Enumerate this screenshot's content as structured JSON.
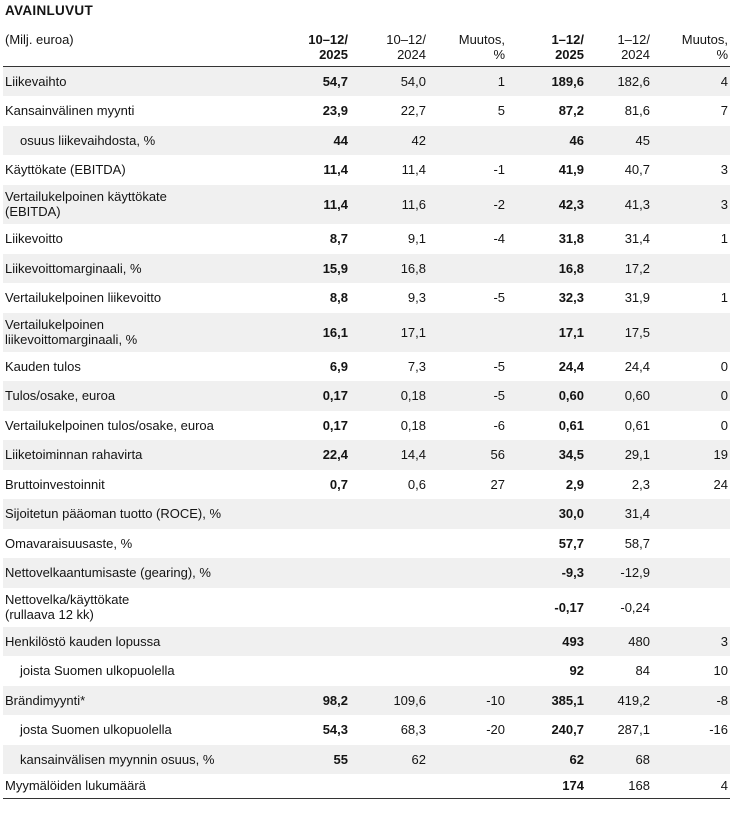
{
  "title": "AVAINLUVUT",
  "header": [
    "(Milj. euroa)",
    "10–12/\n2025",
    "10–12/\n2024",
    "Muutos,\n%",
    "1–12/\n2025",
    "1–12/\n2024",
    "Muutos,\n%"
  ],
  "rows": [
    {
      "label": "Liikevaihto",
      "v1": "54,7",
      "v2": "54,0",
      "v3": "1",
      "v4": "189,6",
      "v5": "182,6",
      "v6": "4"
    },
    {
      "label": "Kansainvälinen myynti",
      "v1": "23,9",
      "v2": "22,7",
      "v3": "5",
      "v4": "87,2",
      "v5": "81,6",
      "v6": "7"
    },
    {
      "label": "osuus liikevaihdosta, %",
      "v1": "44",
      "v2": "42",
      "v3": "",
      "v4": "46",
      "v5": "45",
      "v6": ""
    },
    {
      "label": "Käyttökate (EBITDA)",
      "v1": "11,4",
      "v2": "11,4",
      "v3": "-1",
      "v4": "41,9",
      "v5": "40,7",
      "v6": "3"
    },
    {
      "label": "Vertailukelpoinen käyttökate\n(EBITDA)",
      "v1": "11,4",
      "v2": "11,6",
      "v3": "-2",
      "v4": "42,3",
      "v5": "41,3",
      "v6": "3"
    },
    {
      "label": "Liikevoitto",
      "v1": "8,7",
      "v2": "9,1",
      "v3": "-4",
      "v4": "31,8",
      "v5": "31,4",
      "v6": "1"
    },
    {
      "label": "Liikevoittomarginaali, %",
      "v1": "15,9",
      "v2": "16,8",
      "v3": "",
      "v4": "16,8",
      "v5": "17,2",
      "v6": ""
    },
    {
      "label": "Vertailukelpoinen liikevoitto",
      "v1": "8,8",
      "v2": "9,3",
      "v3": "-5",
      "v4": "32,3",
      "v5": "31,9",
      "v6": "1"
    },
    {
      "label": "Vertailukelpoinen\nliikevoittomarginaali, %",
      "v1": "16,1",
      "v2": "17,1",
      "v3": "",
      "v4": "17,1",
      "v5": "17,5",
      "v6": ""
    },
    {
      "label": "Kauden tulos",
      "v1": "6,9",
      "v2": "7,3",
      "v3": "-5",
      "v4": "24,4",
      "v5": "24,4",
      "v6": "0"
    },
    {
      "label": "Tulos/osake, euroa",
      "v1": "0,17",
      "v2": "0,18",
      "v3": "-5",
      "v4": "0,60",
      "v5": "0,60",
      "v6": "0"
    },
    {
      "label": "Vertailukelpoinen tulos/osake, euroa",
      "v1": "0,17",
      "v2": "0,18",
      "v3": "-6",
      "v4": "0,61",
      "v5": "0,61",
      "v6": "0"
    },
    {
      "label": "Liiketoiminnan rahavirta",
      "v1": "22,4",
      "v2": "14,4",
      "v3": "56",
      "v4": "34,5",
      "v5": "29,1",
      "v6": "19"
    },
    {
      "label": "Bruttoinvestoinnit",
      "v1": "0,7",
      "v2": "0,6",
      "v3": "27",
      "v4": "2,9",
      "v5": "2,3",
      "v6": "24"
    },
    {
      "label": "Sijoitetun pääoman tuotto (ROCE), %",
      "v1": "",
      "v2": "",
      "v3": "",
      "v4": "30,0",
      "v5": "31,4",
      "v6": ""
    },
    {
      "label": "Omavaraisuusaste, %",
      "v1": "",
      "v2": "",
      "v3": "",
      "v4": "57,7",
      "v5": "58,7",
      "v6": ""
    },
    {
      "label": "Nettovelkaantumisaste (gearing), %",
      "v1": "",
      "v2": "",
      "v3": "",
      "v4": "-9,3",
      "v5": "-12,9",
      "v6": ""
    },
    {
      "label": "Nettovelka/käyttökate\n(rullaava 12 kk)",
      "v1": "",
      "v2": "",
      "v3": "",
      "v4": "-0,17",
      "v5": "-0,24",
      "v6": ""
    },
    {
      "label": "Henkilöstö kauden lopussa",
      "v1": "",
      "v2": "",
      "v3": "",
      "v4": "493",
      "v5": "480",
      "v6": "3"
    },
    {
      "label": "joista Suomen ulkopuolella",
      "v1": "",
      "v2": "",
      "v3": "",
      "v4": "92",
      "v5": "84",
      "v6": "10"
    },
    {
      "label": "Brändimyynti*",
      "v1": "98,2",
      "v2": "109,6",
      "v3": "-10",
      "v4": "385,1",
      "v5": "419,2",
      "v6": "-8"
    },
    {
      "label": "josta Suomen ulkopuolella",
      "v1": "54,3",
      "v2": "68,3",
      "v3": "-20",
      "v4": "240,7",
      "v5": "287,1",
      "v6": "-16"
    },
    {
      "label": "kansainvälisen myynnin osuus, %",
      "v1": "55",
      "v2": "62",
      "v3": "",
      "v4": "62",
      "v5": "68",
      "v6": ""
    },
    {
      "label": "Myymälöiden lukumäärä",
      "v1": "",
      "v2": "",
      "v3": "",
      "v4": "174",
      "v5": "168",
      "v6": "4"
    }
  ]
}
